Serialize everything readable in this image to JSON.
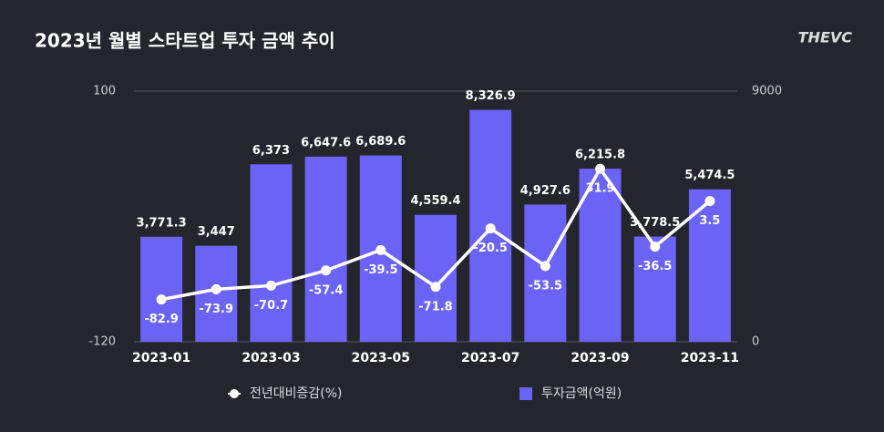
{
  "logo": "THEVC",
  "chart_data": {
    "type": "bar-line",
    "title": "2023년 월별 스타트업 투자 금액 추이",
    "categories": [
      "2023-01",
      null,
      "2023-03",
      null,
      "2023-05",
      null,
      "2023-07",
      null,
      "2023-09",
      null,
      "2023-11"
    ],
    "series": [
      {
        "name": "투자금액(억원)",
        "type": "bar",
        "axis": "y2",
        "color": "#6b63f5",
        "values": [
          3771.3,
          3447,
          6373,
          6647.6,
          6689.6,
          4559.4,
          8326.9,
          4927.6,
          6215.8,
          3778.5,
          5474.5
        ],
        "value_labels": [
          "3,771.3",
          "3,447",
          "6,373",
          "6,647.6",
          "6,689.6",
          "4,559.4",
          "8,326.9",
          "4,927.6",
          "6,215.8",
          "3,778.5",
          "5,474.5"
        ]
      },
      {
        "name": "전년대비증감(%)",
        "type": "line",
        "color": "#ffffff",
        "values": [
          -82.9,
          -73.9,
          -70.7,
          -57.4,
          -39.5,
          -71.8,
          -20.5,
          -53.5,
          31.9,
          -36.5,
          3.5
        ]
      }
    ],
    "ylim": [
      -120,
      100
    ],
    "yticks": [
      -120,
      100
    ],
    "y2lim": [
      0,
      9000
    ],
    "y2ticks": [
      0,
      9000
    ],
    "grid": true
  }
}
